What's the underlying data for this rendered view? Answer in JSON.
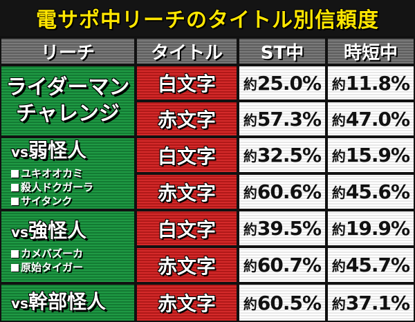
{
  "title": "電サポ中リーチのタイトル別信頼度",
  "headers": {
    "reach": "リーチ",
    "title_col": "タイトル",
    "st": "ST中",
    "jitan": "時短中"
  },
  "groups": [
    {
      "name_lines": [
        "ライダーマン",
        "チャレンジ"
      ],
      "rows": [
        {
          "title": "白文字",
          "st": "約25.0%",
          "jitan": "約11.8%"
        },
        {
          "title": "赤文字",
          "st": "約57.3%",
          "jitan": "約47.0%"
        }
      ]
    },
    {
      "name": "vs弱怪人",
      "members": [
        "ユキオオカミ",
        "殺人ドクガーラ",
        "サイタンク"
      ],
      "rows": [
        {
          "title": "白文字",
          "st": "約32.5%",
          "jitan": "約15.9%"
        },
        {
          "title": "赤文字",
          "st": "約60.6%",
          "jitan": "約45.6%"
        }
      ]
    },
    {
      "name": "vs強怪人",
      "members": [
        "カメバズーカ",
        "原始タイガー"
      ],
      "rows": [
        {
          "title": "白文字",
          "st": "約39.5%",
          "jitan": "約19.9%"
        },
        {
          "title": "赤文字",
          "st": "約60.7%",
          "jitan": "約45.7%"
        }
      ]
    },
    {
      "name": "vs幹部怪人",
      "rows": [
        {
          "title": "赤文字",
          "st": "約60.5%",
          "jitan": "約37.1%"
        }
      ]
    }
  ],
  "colors": {
    "title_text": "#ffe600",
    "reach_bg": "#1f9a44",
    "title_bg": "#d42a2a",
    "value_bg": "#ffffff",
    "header_bg": "#7a7a7a"
  }
}
